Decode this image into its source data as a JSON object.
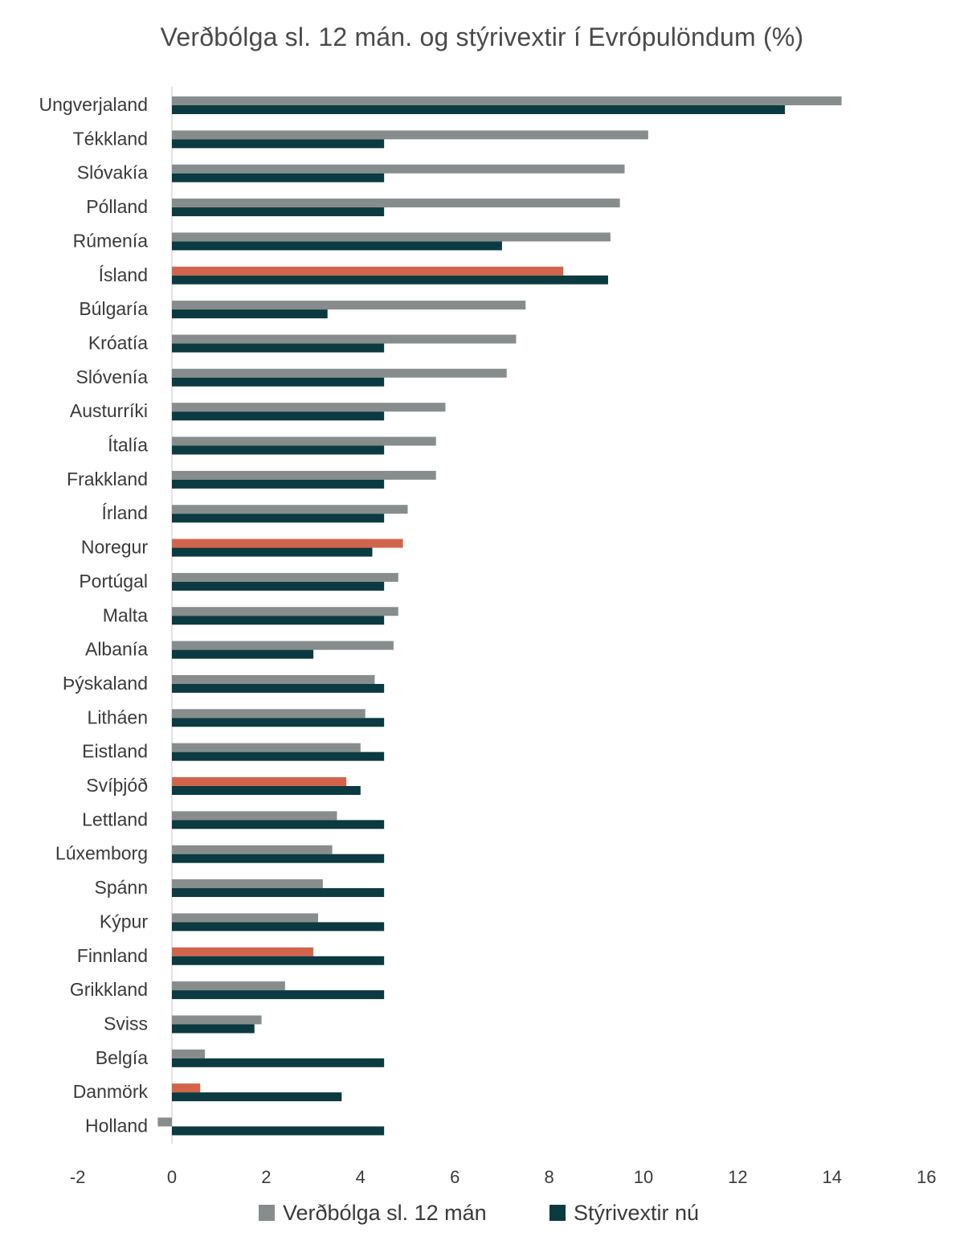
{
  "chart_data": {
    "type": "bar",
    "orientation": "horizontal",
    "title": "Verðbólga sl. 12 mán. og stýrivextir í Evrópulöndum (%)",
    "categories": [
      "Ungverjaland",
      "Tékkland",
      "Slóvakía",
      "Pólland",
      "Rúmenía",
      "Ísland",
      "Búlgaría",
      "Króatía",
      "Slóvenía",
      "Austurríki",
      "Ítalía",
      "Frakkland",
      "Írland",
      "Noregur",
      "Portúgal",
      "Malta",
      "Albanía",
      "Þýskaland",
      "Litháen",
      "Eistland",
      "Svíþjóð",
      "Lettland",
      "Lúxemborg",
      "Spánn",
      "Kýpur",
      "Finnland",
      "Grikkland",
      "Sviss",
      "Belgía",
      "Danmörk",
      "Holland"
    ],
    "series": [
      {
        "name": "Verðbólga sl. 12 mán",
        "color": "#878d8d",
        "values": [
          14.2,
          10.1,
          9.6,
          9.5,
          9.3,
          8.3,
          7.5,
          7.3,
          7.1,
          5.8,
          5.6,
          5.6,
          5.0,
          4.9,
          4.8,
          4.8,
          4.7,
          4.3,
          4.1,
          4.0,
          3.7,
          3.5,
          3.4,
          3.2,
          3.1,
          3.0,
          2.4,
          1.9,
          0.7,
          0.6,
          -0.3
        ]
      },
      {
        "name": "Stýrivextir nú",
        "color": "#0b3a40",
        "values": [
          13.0,
          4.5,
          4.5,
          4.5,
          7.0,
          9.25,
          3.3,
          4.5,
          4.5,
          4.5,
          4.5,
          4.5,
          4.5,
          4.25,
          4.5,
          4.5,
          3.0,
          4.5,
          4.5,
          4.5,
          4.0,
          4.5,
          4.5,
          4.5,
          4.5,
          4.5,
          4.5,
          1.75,
          4.5,
          3.6,
          4.5
        ]
      }
    ],
    "highlight_color": "#d2644b",
    "highlighted_categories": [
      "Ísland",
      "Noregur",
      "Svíþjóð",
      "Finnland",
      "Danmörk"
    ],
    "xlim": [
      -2,
      16
    ],
    "x_ticks": [
      "-2",
      "0",
      "2",
      "4",
      "6",
      "8",
      "10",
      "12",
      "14",
      "16"
    ],
    "xlabel": "",
    "ylabel": "",
    "grid": false,
    "legend_position": "bottom"
  }
}
